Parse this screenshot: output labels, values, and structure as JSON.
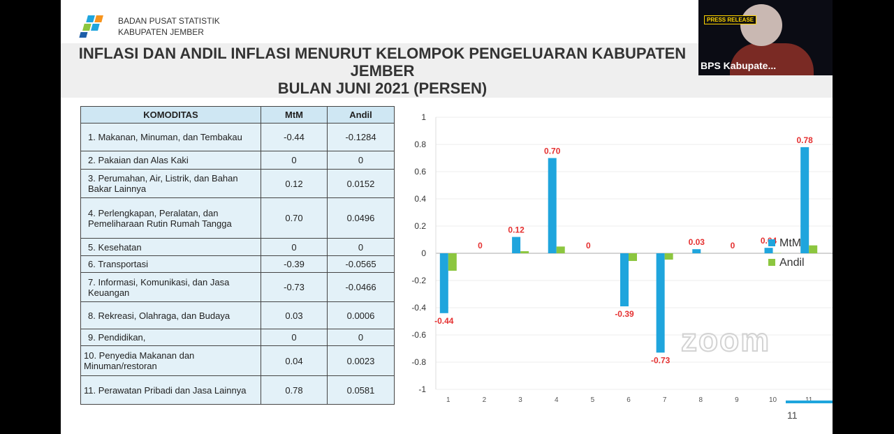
{
  "video": {
    "participant_name": "BPS Kabupate...",
    "badge": "PRESS RELEASE"
  },
  "logo": {
    "line1": "BADAN PUSAT STATISTIK",
    "line2": "KABUPATEN JEMBER"
  },
  "slide": {
    "title_line1": "INFLASI DAN ANDIL INFLASI MENURUT KELOMPOK PENGELUARAN KABUPATEN JEMBER",
    "title_line2": "BULAN JUNI 2021 (PERSEN)",
    "page_number": "11",
    "watermark": "zoom"
  },
  "table": {
    "headers": [
      "KOMODITAS",
      "MtM",
      "Andil"
    ],
    "rows": [
      [
        "1. Makanan, Minuman, dan Tembakau",
        "-0.44",
        "-0.1284"
      ],
      [
        "2. Pakaian dan Alas Kaki",
        "0",
        "0"
      ],
      [
        "3. Perumahan, Air, Listrik, dan  Bahan Bakar Lainnya",
        "0.12",
        "0.0152"
      ],
      [
        "4. Perlengkapan, Peralatan, dan Pemeliharaan Rutin Rumah Tangga",
        "0.70",
        "0.0496"
      ],
      [
        "5. Kesehatan",
        "0",
        "0"
      ],
      [
        "6. Transportasi",
        "-0.39",
        "-0.0565"
      ],
      [
        "7. Informasi, Komunikasi, dan Jasa Keuangan",
        "-0.73",
        "-0.0466"
      ],
      [
        "8. Rekreasi, Olahraga, dan Budaya",
        "0.03",
        "0.0006"
      ],
      [
        "9. Pendidikan,",
        "0",
        "0"
      ],
      [
        "10. Penyedia Makanan dan Minuman/restoran",
        "0.04",
        "0.0023"
      ],
      [
        "11. Perawatan  Pribadi dan Jasa Lainnya",
        "0.78",
        "0.0581"
      ]
    ]
  },
  "chart_data": {
    "type": "bar",
    "categories": [
      "1",
      "2",
      "3",
      "4",
      "5",
      "6",
      "7",
      "8",
      "9",
      "10",
      "11"
    ],
    "series": [
      {
        "name": "MtM",
        "color": "#1fa5dd",
        "values": [
          -0.44,
          0,
          0.12,
          0.7,
          0,
          -0.39,
          -0.73,
          0.03,
          0,
          0.04,
          0.78
        ],
        "labels": [
          "-0.44",
          "0",
          "0.12",
          "0.70",
          "0",
          "-0.39",
          "-0.73",
          "0.03",
          "0",
          "0.04",
          "0.78"
        ]
      },
      {
        "name": "Andil",
        "color": "#8cc63f",
        "values": [
          -0.1284,
          0,
          0.0152,
          0.0496,
          0,
          -0.0565,
          -0.0466,
          0.0006,
          0,
          0.0023,
          0.0581
        ]
      }
    ],
    "yticks": [
      "1",
      "0.8",
      "0.6",
      "0.4",
      "0.2",
      "0",
      "-0.2",
      "-0.4",
      "-0.6",
      "-0.8",
      "-1"
    ],
    "ylim": [
      -1,
      1
    ],
    "grid": true,
    "legend": "right",
    "label_color": "#e53030"
  }
}
